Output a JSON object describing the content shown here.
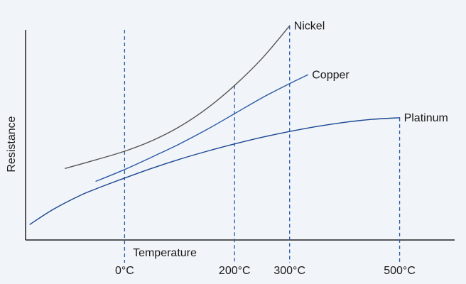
{
  "chart_data": {
    "type": "line",
    "title": "",
    "xlabel": "Temperature",
    "ylabel": "Resistance",
    "x_range": [
      -180,
      600
    ],
    "y_range": [
      0,
      100
    ],
    "grid": false,
    "ticks": [
      {
        "value": 0,
        "label": "0°C"
      },
      {
        "value": 200,
        "label": "200°C"
      },
      {
        "value": 300,
        "label": "300°C"
      },
      {
        "value": 500,
        "label": "500°C"
      }
    ],
    "series": [
      {
        "name": "Nickel",
        "color": "#555555",
        "x": [
          -108,
          -50,
          0,
          50,
          100,
          150,
          200,
          250,
          300
        ],
        "y": [
          31.2,
          35.1,
          38.7,
          43.3,
          49.4,
          57.4,
          67.4,
          79.2,
          93.4
        ]
      },
      {
        "name": "Copper",
        "color": "#2a5aa6",
        "x": [
          -52,
          0,
          50,
          100,
          150,
          200,
          250,
          300,
          333
        ],
        "y": [
          25.6,
          30.7,
          36.2,
          41.9,
          48.2,
          55.1,
          62.0,
          68.2,
          72.0
        ]
      },
      {
        "name": "Platinum",
        "color": "#1a4793",
        "x": [
          -172,
          -130,
          -80,
          -40,
          0,
          50,
          100,
          150,
          200,
          250,
          300,
          350,
          400,
          450,
          500
        ],
        "y": [
          6.8,
          13.3,
          19.5,
          23.4,
          27.0,
          31.3,
          35.2,
          38.7,
          41.9,
          44.8,
          47.3,
          49.5,
          51.3,
          52.6,
          53.3
        ]
      }
    ]
  }
}
